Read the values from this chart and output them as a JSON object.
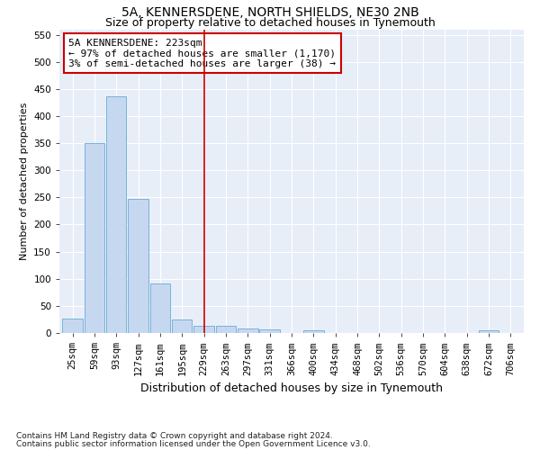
{
  "title": "5A, KENNERSDENE, NORTH SHIELDS, NE30 2NB",
  "subtitle": "Size of property relative to detached houses in Tynemouth",
  "xlabel": "Distribution of detached houses by size in Tynemouth",
  "ylabel": "Number of detached properties",
  "bar_labels": [
    "25sqm",
    "59sqm",
    "93sqm",
    "127sqm",
    "161sqm",
    "195sqm",
    "229sqm",
    "263sqm",
    "297sqm",
    "331sqm",
    "366sqm",
    "400sqm",
    "434sqm",
    "468sqm",
    "502sqm",
    "536sqm",
    "570sqm",
    "604sqm",
    "638sqm",
    "672sqm",
    "706sqm"
  ],
  "bar_values": [
    27,
    350,
    437,
    248,
    92,
    25,
    14,
    13,
    9,
    6,
    0,
    5,
    0,
    0,
    0,
    0,
    0,
    0,
    0,
    5,
    0
  ],
  "bar_color": "#c5d8f0",
  "bar_edge_color": "#6aaad4",
  "vline_x": 6.0,
  "vline_color": "#cc0000",
  "annotation_text": "5A KENNERSDENE: 223sqm\n← 97% of detached houses are smaller (1,170)\n3% of semi-detached houses are larger (38) →",
  "annotation_box_color": "#cc0000",
  "ylim": [
    0,
    560
  ],
  "yticks": [
    0,
    50,
    100,
    150,
    200,
    250,
    300,
    350,
    400,
    450,
    500,
    550
  ],
  "footnote1": "Contains HM Land Registry data © Crown copyright and database right 2024.",
  "footnote2": "Contains public sector information licensed under the Open Government Licence v3.0.",
  "bg_color": "#ffffff",
  "plot_bg_color": "#e8eef8",
  "title_fontsize": 10,
  "subtitle_fontsize": 9,
  "ylabel_fontsize": 8,
  "xlabel_fontsize": 9,
  "tick_fontsize": 7.5,
  "annot_fontsize": 8,
  "footnote_fontsize": 6.5
}
